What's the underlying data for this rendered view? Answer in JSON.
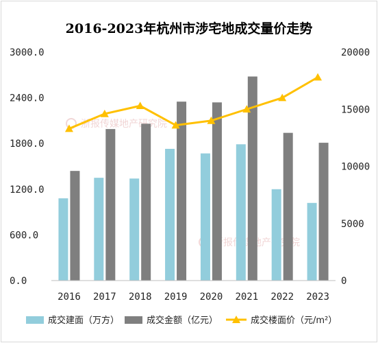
{
  "chart_data": {
    "type": "bar",
    "title": "2016-2023年杭州市涉宅地成交量价走势",
    "categories": [
      "2016",
      "2017",
      "2018",
      "2019",
      "2020",
      "2021",
      "2022",
      "2023"
    ],
    "series": [
      {
        "name": "成交建面（万方）",
        "kind": "bar",
        "axis": "left",
        "color": "#92cddc",
        "values": [
          1080,
          1350,
          1340,
          1730,
          1670,
          1790,
          1200,
          1020
        ]
      },
      {
        "name": "成交金额（亿元）",
        "kind": "bar",
        "axis": "left",
        "color": "#7f7f7f",
        "values": [
          1440,
          1990,
          2060,
          2350,
          2340,
          2680,
          1940,
          1810
        ]
      },
      {
        "name": "成交楼面价（元/m²）",
        "kind": "line",
        "axis": "right",
        "color": "#ffc000",
        "values": [
          13300,
          14600,
          15300,
          13600,
          14000,
          15000,
          16000,
          17800
        ]
      }
    ],
    "y_left": {
      "range": [
        0,
        3000
      ],
      "ticks": [
        "0.0",
        "600.0",
        "1200.0",
        "1800.0",
        "2400.0",
        "3000.0"
      ]
    },
    "y_right": {
      "range": [
        0,
        20000
      ],
      "ticks": [
        "0",
        "5000",
        "10000",
        "15000",
        "20000"
      ]
    },
    "grid": false,
    "legend_position": "bottom"
  },
  "watermark": "浙报传媒地产研究院"
}
